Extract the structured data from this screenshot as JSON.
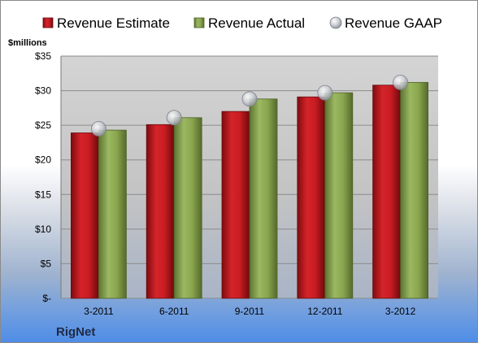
{
  "chart_data": {
    "type": "bar",
    "title": "",
    "ylabel": "$millions",
    "xlabel": "",
    "company": "RigNet",
    "categories": [
      "3-2011",
      "6-2011",
      "9-2011",
      "12-2011",
      "3-2012"
    ],
    "ylim": [
      0,
      35
    ],
    "yticks": [
      0,
      5,
      10,
      15,
      20,
      25,
      30,
      35
    ],
    "ytick_labels": [
      "$-",
      "$5",
      "$10",
      "$15",
      "$20",
      "$25",
      "$30",
      "$35"
    ],
    "grid": true,
    "legend_position": "top",
    "series": [
      {
        "name": "Revenue Estimate",
        "kind": "bar",
        "color": "#c0161b",
        "values": [
          23.9,
          25.1,
          27.0,
          29.1,
          30.8
        ]
      },
      {
        "name": "Revenue Actual",
        "kind": "bar",
        "color": "#8aa64e",
        "values": [
          24.3,
          26.1,
          28.8,
          29.7,
          31.2
        ]
      },
      {
        "name": "Revenue GAAP",
        "kind": "marker",
        "color": "#b9bcc4",
        "values": [
          24.5,
          26.1,
          28.8,
          29.7,
          31.2
        ]
      }
    ]
  }
}
